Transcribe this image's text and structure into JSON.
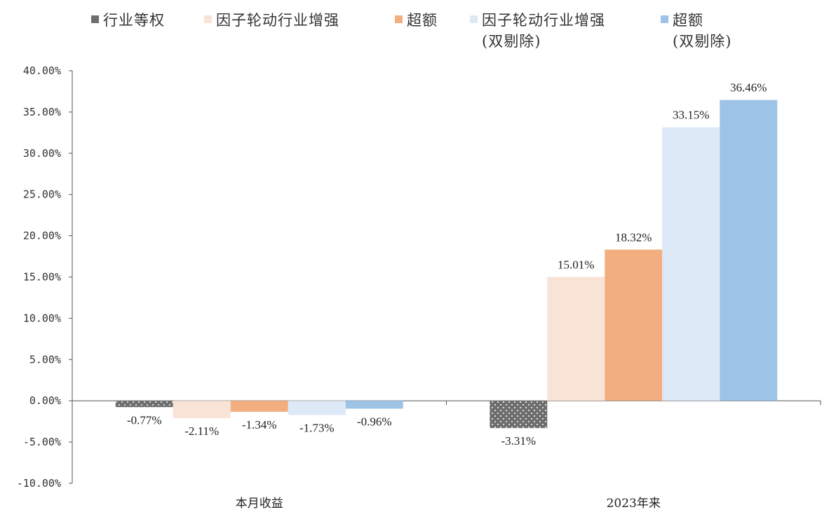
{
  "chart_data": {
    "type": "bar",
    "categories": [
      "本月收益",
      "2023年来"
    ],
    "series": [
      {
        "name": "行业等权",
        "values": [
          -0.77,
          -3.31
        ],
        "labels": [
          "-0.77%",
          "-3.31%"
        ],
        "color": "#6e6e6e",
        "pattern": "dotted"
      },
      {
        "name": "因子轮动行业增强",
        "values": [
          -2.11,
          15.01
        ],
        "labels": [
          "-2.11%",
          "15.01%"
        ],
        "color": "#f9e3d6"
      },
      {
        "name": "超额",
        "values": [
          -1.34,
          18.32
        ],
        "labels": [
          "-1.34%",
          "18.32%"
        ],
        "color": "#f2ae7f"
      },
      {
        "name": "因子轮动行业增强\n(双剔除)",
        "values": [
          -1.73,
          33.15
        ],
        "labels": [
          "-1.73%",
          "33.15%"
        ],
        "color": "#dde9f6"
      },
      {
        "name": "超额\n(双剔除)",
        "values": [
          -0.96,
          36.46
        ],
        "labels": [
          "-0.96%",
          "36.46%"
        ],
        "color": "#9dc3e6"
      }
    ],
    "yticks": [
      "40.00%",
      "35.00%",
      "30.00%",
      "25.00%",
      "20.00%",
      "15.00%",
      "10.00%",
      "5.00%",
      "0.00%",
      "-5.00%",
      "-10.00%"
    ],
    "ylim": [
      -10,
      40
    ],
    "ytick_step": 5,
    "legend_position": "top",
    "grid": false
  }
}
